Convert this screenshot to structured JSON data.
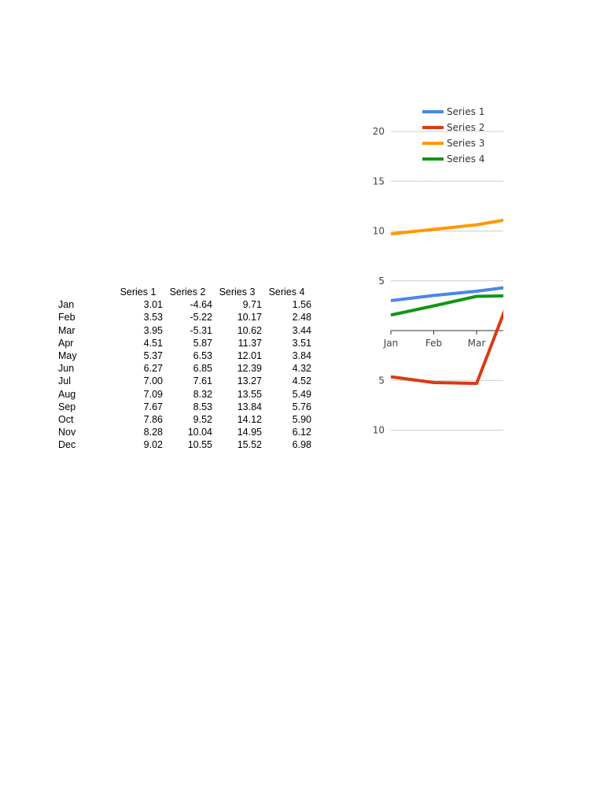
{
  "table": {
    "headers": [
      "Series 1",
      "Series 2",
      "Series 3",
      "Series 4"
    ],
    "rows": [
      {
        "month": "Jan",
        "values": [
          "3.01",
          "-4.64",
          "9.71",
          "1.56"
        ]
      },
      {
        "month": "Feb",
        "values": [
          "3.53",
          "-5.22",
          "10.17",
          "2.48"
        ]
      },
      {
        "month": "Mar",
        "values": [
          "3.95",
          "-5.31",
          "10.62",
          "3.44"
        ]
      },
      {
        "month": "Apr",
        "values": [
          "4.51",
          "5.87",
          "11.37",
          "3.51"
        ]
      },
      {
        "month": "May",
        "values": [
          "5.37",
          "6.53",
          "12.01",
          "3.84"
        ]
      },
      {
        "month": "Jun",
        "values": [
          "6.27",
          "6.85",
          "12.39",
          "4.32"
        ]
      },
      {
        "month": "Jul",
        "values": [
          "7.00",
          "7.61",
          "13.27",
          "4.52"
        ]
      },
      {
        "month": "Aug",
        "values": [
          "7.09",
          "8.32",
          "13.55",
          "5.49"
        ]
      },
      {
        "month": "Sep",
        "values": [
          "7.67",
          "8.53",
          "13.84",
          "5.76"
        ]
      },
      {
        "month": "Oct",
        "values": [
          "7.86",
          "9.52",
          "14.12",
          "5.90"
        ]
      },
      {
        "month": "Nov",
        "values": [
          "8.28",
          "10.04",
          "14.95",
          "6.12"
        ]
      },
      {
        "month": "Dec",
        "values": [
          "9.02",
          "10.55",
          "15.52",
          "6.98"
        ]
      }
    ]
  },
  "chart_data": {
    "type": "line",
    "categories": [
      "Jan",
      "Feb",
      "Mar",
      "Apr"
    ],
    "visible_categories": [
      "Jan",
      "Feb",
      "Mar"
    ],
    "y_tick_labels": [
      "20",
      "15",
      "10",
      "5",
      "5",
      "10"
    ],
    "y_tick_values": [
      20,
      15,
      10,
      5,
      -5,
      -10
    ],
    "ylim": [
      -10,
      20
    ],
    "grid": true,
    "legend_position": "top-right",
    "cropped_right": true,
    "series": [
      {
        "name": "Series 1",
        "color": "#4a86e8",
        "values": [
          3.01,
          3.53,
          3.95,
          4.51
        ]
      },
      {
        "name": "Series 2",
        "color": "#dc3912",
        "values": [
          -4.64,
          -5.22,
          -5.31,
          5.87
        ]
      },
      {
        "name": "Series 3",
        "color": "#ff9900",
        "values": [
          9.71,
          10.17,
          10.62,
          11.37
        ]
      },
      {
        "name": "Series 4",
        "color": "#109618",
        "values": [
          1.56,
          2.48,
          3.44,
          3.51
        ]
      }
    ]
  }
}
